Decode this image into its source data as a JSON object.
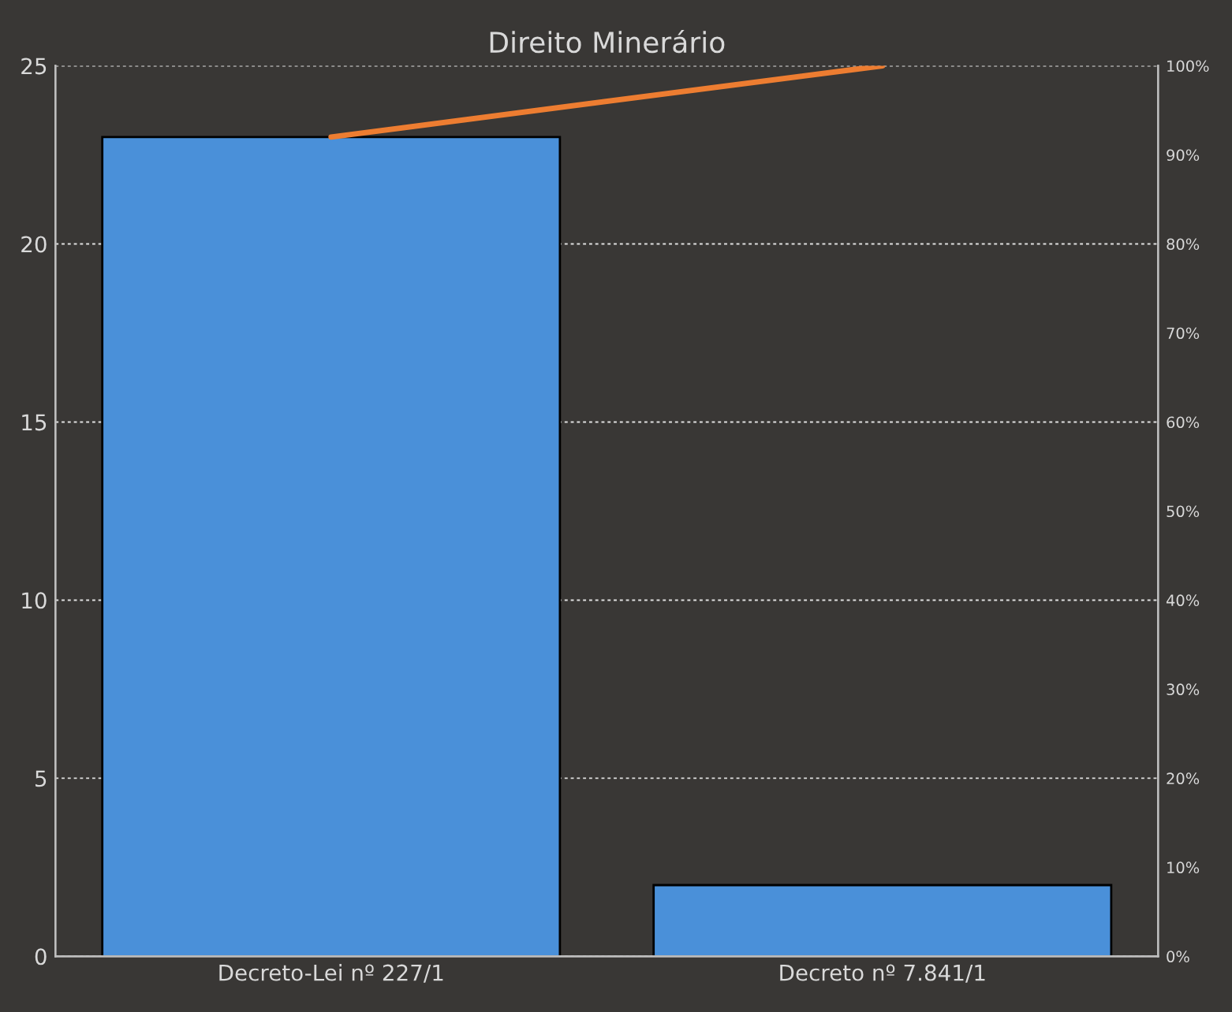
{
  "chart_data": {
    "type": "bar",
    "title": "Direito Minerário",
    "categories": [
      "Decreto-Lei nº 227/1",
      "Decreto nº 7.841/1"
    ],
    "series": [
      {
        "color": "#4a90d9",
        "values": [
          23,
          2
        ]
      },
      {
        "type": "line",
        "axis": "y2",
        "color": "#ed7d31",
        "values": [
          92,
          100
        ]
      }
    ],
    "ylim": [
      0,
      25
    ],
    "yticks": [
      0,
      5,
      10,
      15,
      20,
      25
    ],
    "y2lim": [
      0,
      100
    ],
    "y2ticks": [
      {
        "value": 0,
        "label": "0%"
      },
      {
        "value": 10,
        "label": "10%"
      },
      {
        "value": 20,
        "label": "20%"
      },
      {
        "value": 30,
        "label": "30%"
      },
      {
        "value": 40,
        "label": "40%"
      },
      {
        "value": 50,
        "label": "50%"
      },
      {
        "value": 60,
        "label": "60%"
      },
      {
        "value": 70,
        "label": "70%"
      },
      {
        "value": 80,
        "label": "80%"
      },
      {
        "value": 90,
        "label": "90%"
      },
      {
        "value": 100,
        "label": "100%"
      }
    ],
    "grid": "y",
    "marker": "none",
    "line_style": "solid",
    "legend": false
  }
}
